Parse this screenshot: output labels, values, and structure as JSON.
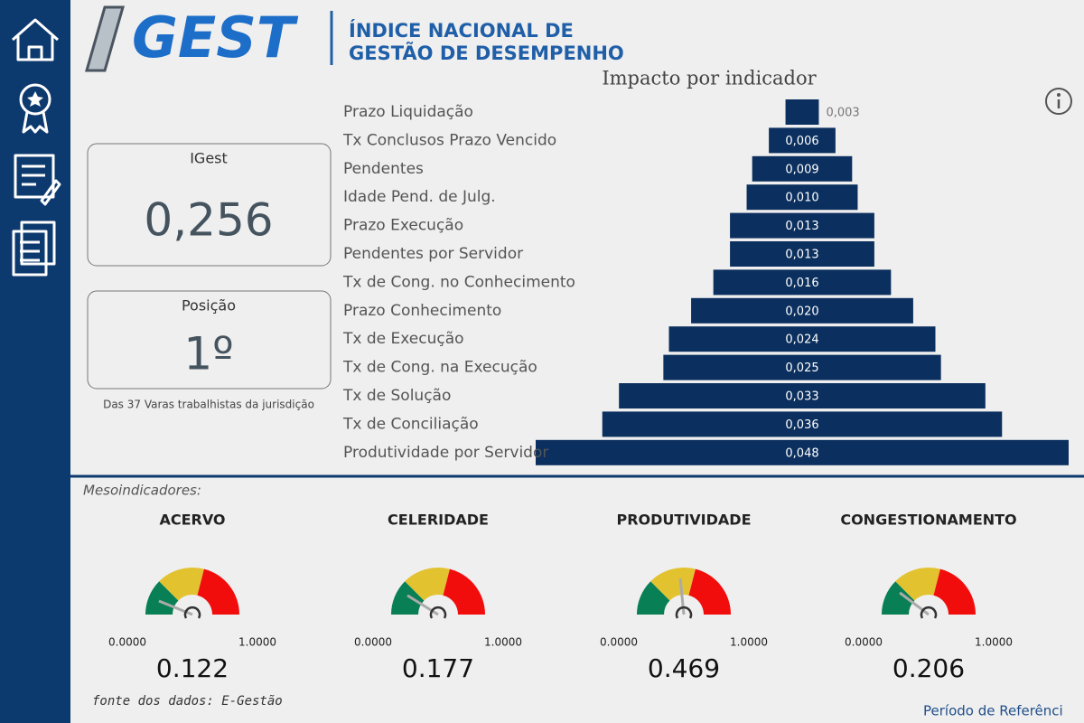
{
  "header": {
    "logo": "GEST",
    "title_line1": "ÍNDICE NACIONAL DE",
    "title_line2": "GESTÃO DE DESEMPENHO"
  },
  "cards": [
    {
      "label": "IGest",
      "value": "0,256"
    },
    {
      "label": "Posição",
      "value": "1º",
      "note": "Das 37 Varas trabalhistas da jurisdição"
    }
  ],
  "section_label": "Mesoindicadores:",
  "footer": {
    "source": "fonte dos dados: E-Gestão",
    "period": "Período de Referênci"
  },
  "chart_data": [
    {
      "type": "bar",
      "title": "Impacto por indicador",
      "categories": [
        "Prazo Liquidação",
        "Tx Conclusos Prazo Vencido",
        "Pendentes",
        "Idade Pend. de Julg.",
        "Prazo Execução",
        "Pendentes por Servidor",
        "Tx de Cong. no Conhecimento",
        "Prazo Conhecimento",
        "Tx de Execução",
        "Tx de Cong. na Execução",
        "Tx de Solução",
        "Tx de Conciliação",
        "Produtividade por Servidor"
      ],
      "values": [
        0.003,
        0.006,
        0.009,
        0.01,
        0.013,
        0.013,
        0.016,
        0.02,
        0.024,
        0.025,
        0.033,
        0.036,
        0.048
      ],
      "value_labels": [
        "0,003",
        "0,006",
        "0,009",
        "0,010",
        "0,013",
        "0,013",
        "0,016",
        "0,020",
        "0,024",
        "0,025",
        "0,033",
        "0,036",
        "0,048"
      ],
      "color": "#0b2f5e"
    },
    {
      "type": "gauge",
      "title": "ACERVO",
      "value": 0.122,
      "min": {
        "value": 0,
        "label": "0.0000"
      },
      "max": {
        "value": 1,
        "label": "1.0000"
      },
      "bands": [
        0,
        0.25,
        0.58,
        1
      ],
      "colors": [
        "#087f55",
        "#e3c230",
        "#f20d0d"
      ]
    },
    {
      "type": "gauge",
      "title": "CELERIDADE",
      "value": 0.177,
      "min": {
        "value": 0,
        "label": "0.0000"
      },
      "max": {
        "value": 1,
        "label": "1.0000"
      },
      "bands": [
        0,
        0.25,
        0.58,
        1
      ],
      "colors": [
        "#087f55",
        "#e3c230",
        "#f20d0d"
      ]
    },
    {
      "type": "gauge",
      "title": "PRODUTIVIDADE",
      "value": 0.469,
      "min": {
        "value": 0,
        "label": "0.0000"
      },
      "max": {
        "value": 1,
        "label": "1.0000"
      },
      "bands": [
        0,
        0.25,
        0.58,
        1
      ],
      "colors": [
        "#087f55",
        "#e3c230",
        "#f20d0d"
      ]
    },
    {
      "type": "gauge",
      "title": "CONGESTIONAMENTO",
      "value": 0.206,
      "min": {
        "value": 0,
        "label": "0.0000"
      },
      "max": {
        "value": 1,
        "label": "1.0000"
      },
      "bands": [
        0,
        0.25,
        0.58,
        1
      ],
      "colors": [
        "#087f55",
        "#e3c230",
        "#f20d0d"
      ]
    }
  ]
}
